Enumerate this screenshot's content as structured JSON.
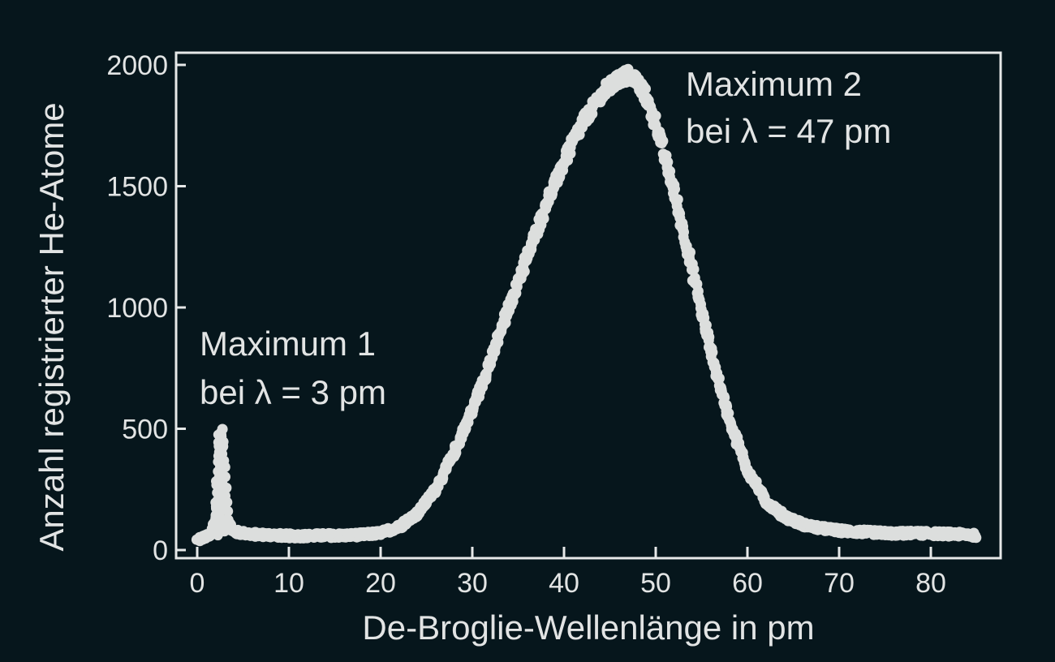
{
  "chart_data": {
    "type": "scatter",
    "title": "",
    "xlabel": "De-Broglie-Wellenlänge in pm",
    "ylabel": "Anzahl registrierter He-Atome",
    "xlim": [
      -2,
      88
    ],
    "ylim": [
      0,
      2050
    ],
    "grid": false,
    "legend": null,
    "x_ticks": [
      0,
      10,
      20,
      30,
      40,
      50,
      60,
      70,
      80
    ],
    "y_ticks": [
      0,
      500,
      1000,
      1500,
      2000
    ],
    "x_tick_labels": [
      "0",
      "10",
      "20",
      "30",
      "40",
      "50",
      "60",
      "70",
      "80"
    ],
    "y_tick_labels": [
      "0",
      "500",
      "1000",
      "1500",
      "2000"
    ],
    "annotations": [
      {
        "line1": "Maximum 1",
        "line2": "bei λ = 3 pm",
        "x": 3,
        "y": 490
      },
      {
        "line1": "Maximum 2",
        "line2": "bei λ = 47 pm",
        "x": 47,
        "y": 1950
      }
    ],
    "series": [
      {
        "name": "He-Atome",
        "marker_color": "#dcdedd",
        "x": [
          0,
          0.5,
          1,
          1.5,
          2,
          2.3,
          2.5,
          2.7,
          3,
          3.3,
          3.6,
          4,
          5,
          6,
          8,
          10,
          12,
          14,
          16,
          18,
          20,
          22,
          24,
          26,
          28,
          30,
          32,
          34,
          36,
          38,
          40,
          42,
          44,
          45,
          46,
          47,
          48,
          49,
          50,
          52,
          54,
          56,
          58,
          60,
          62,
          64,
          66,
          68,
          70,
          72,
          74,
          76,
          78,
          80,
          82,
          84,
          85
        ],
        "y": [
          40,
          50,
          55,
          60,
          120,
          250,
          430,
          490,
          300,
          130,
          90,
          75,
          70,
          65,
          62,
          58,
          58,
          60,
          60,
          63,
          70,
          95,
          150,
          250,
          400,
          580,
          780,
          1000,
          1210,
          1420,
          1600,
          1760,
          1870,
          1910,
          1940,
          1960,
          1930,
          1860,
          1760,
          1480,
          1150,
          820,
          540,
          330,
          200,
          140,
          105,
          90,
          80,
          75,
          72,
          68,
          70,
          68,
          66,
          64,
          60
        ]
      }
    ]
  }
}
